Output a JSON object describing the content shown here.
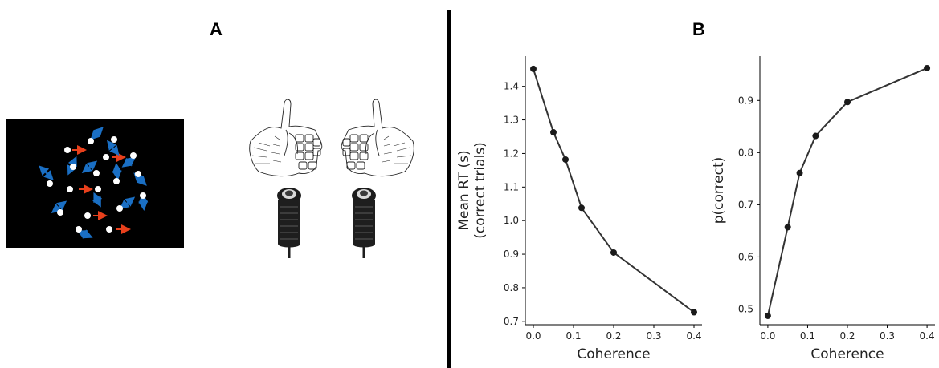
{
  "panels": {
    "a_label": "A",
    "b_label": "B"
  },
  "stimulus": {
    "background_color": "#000000",
    "dot_color": "#ffffff",
    "coherent_arrow_color": "#e8401c",
    "random_arrow_color": "#1a6fc4",
    "description_icons": [
      "random-dot-motion-icon",
      "coherent-motion-arrow-icon",
      "random-motion-arrow-icon"
    ]
  },
  "apparatus": {
    "icons": [
      "left-hand-icon",
      "right-hand-icon",
      "left-button-icon",
      "right-button-icon"
    ]
  },
  "chart_data": [
    {
      "type": "line",
      "title": "",
      "xlabel": "Coherence",
      "ylabel_line1": "Mean RT (s)",
      "ylabel_line2": "(correct trials)",
      "x": [
        0.0,
        0.05,
        0.08,
        0.12,
        0.2,
        0.4
      ],
      "series": [
        {
          "values": [
            1.452,
            1.263,
            1.182,
            1.038,
            0.905,
            0.727
          ]
        }
      ],
      "xlim": [
        -0.02,
        0.42
      ],
      "ylim": [
        0.69,
        1.49
      ],
      "xticks": [
        0.0,
        0.1,
        0.2,
        0.3,
        0.4
      ],
      "xtick_labels": [
        "0.0",
        "0.1",
        "0.2",
        "0.3",
        "0.4"
      ],
      "yticks": [
        0.7,
        0.8,
        0.9,
        1.0,
        1.1,
        1.2,
        1.3,
        1.4
      ],
      "ytick_labels": [
        "0.7",
        "0.8",
        "0.9",
        "1.0",
        "1.1",
        "1.2",
        "1.3",
        "1.4"
      ],
      "grid": false,
      "line_color": "#333333"
    },
    {
      "type": "line",
      "title": "",
      "xlabel": "Coherence",
      "ylabel_line1": "p(correct)",
      "ylabel_line2": "",
      "x": [
        0.0,
        0.05,
        0.08,
        0.12,
        0.2,
        0.4
      ],
      "series": [
        {
          "values": [
            0.487,
            0.657,
            0.761,
            0.832,
            0.897,
            0.962
          ]
        }
      ],
      "xlim": [
        -0.02,
        0.42
      ],
      "ylim": [
        0.47,
        0.985
      ],
      "xticks": [
        0.0,
        0.1,
        0.2,
        0.3,
        0.4
      ],
      "xtick_labels": [
        "0.0",
        "0.1",
        "0.2",
        "0.3",
        "0.4"
      ],
      "yticks": [
        0.5,
        0.6,
        0.7,
        0.8,
        0.9
      ],
      "ytick_labels": [
        "0.5",
        "0.6",
        "0.7",
        "0.8",
        "0.9"
      ],
      "grid": false,
      "line_color": "#333333"
    }
  ]
}
